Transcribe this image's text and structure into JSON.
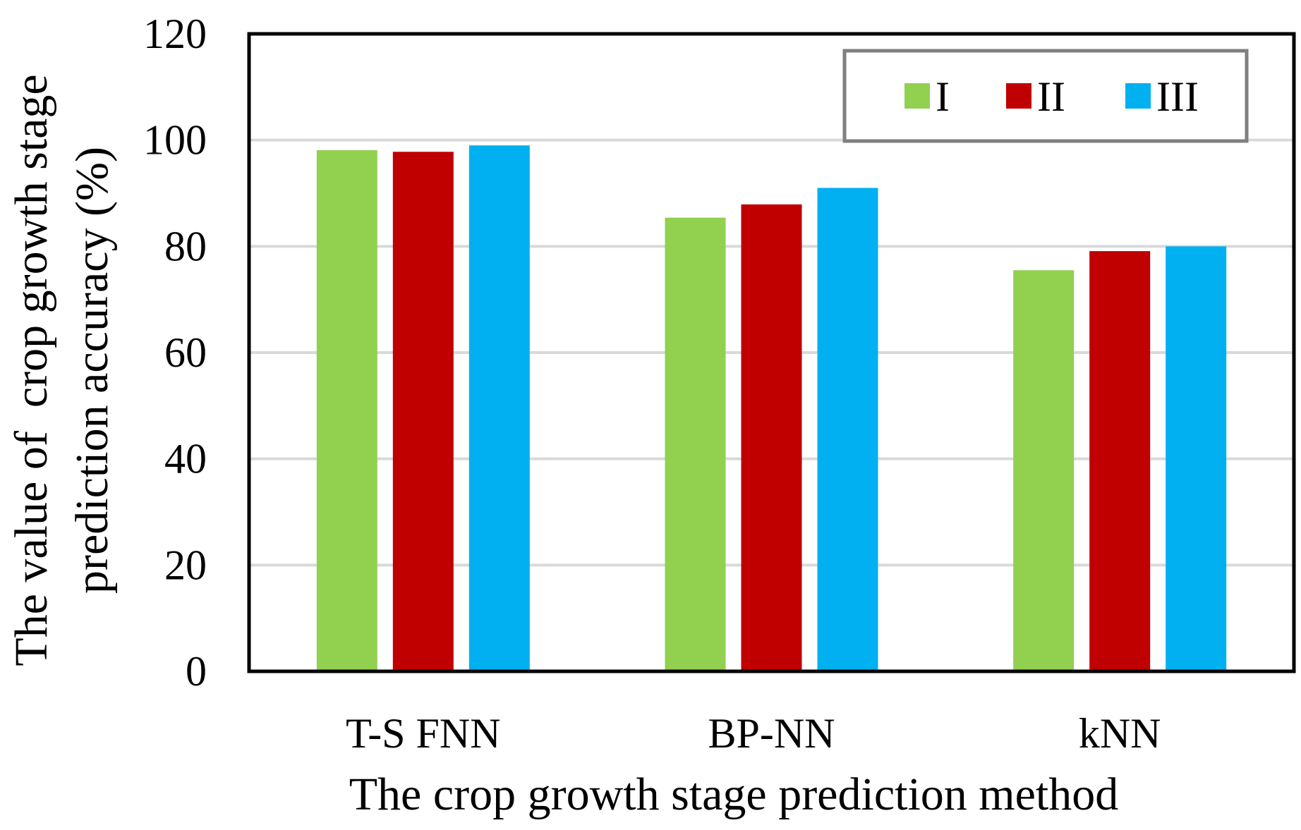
{
  "chart_data": {
    "type": "bar",
    "title": "",
    "xlabel": "The crop growth stage prediction method",
    "ylabel_lines": [
      "The value of  crop growth stage",
      "prediction accuracy (%)"
    ],
    "categories": [
      "T-S FNN",
      "BP-NN",
      "kNN"
    ],
    "series": [
      {
        "name": "I",
        "color": "#92d050",
        "values": [
          98.1,
          85.4,
          75.5
        ]
      },
      {
        "name": "II",
        "color": "#c00000",
        "values": [
          97.8,
          87.9,
          79.1
        ]
      },
      {
        "name": "III",
        "color": "#00b0f0",
        "values": [
          99.0,
          91.0,
          80.0
        ]
      }
    ],
    "ylim": [
      0,
      120
    ],
    "yticks": [
      "0",
      "20",
      "40",
      "60",
      "80",
      "100",
      "120"
    ],
    "grid": true,
    "legend_position": "top-right"
  }
}
